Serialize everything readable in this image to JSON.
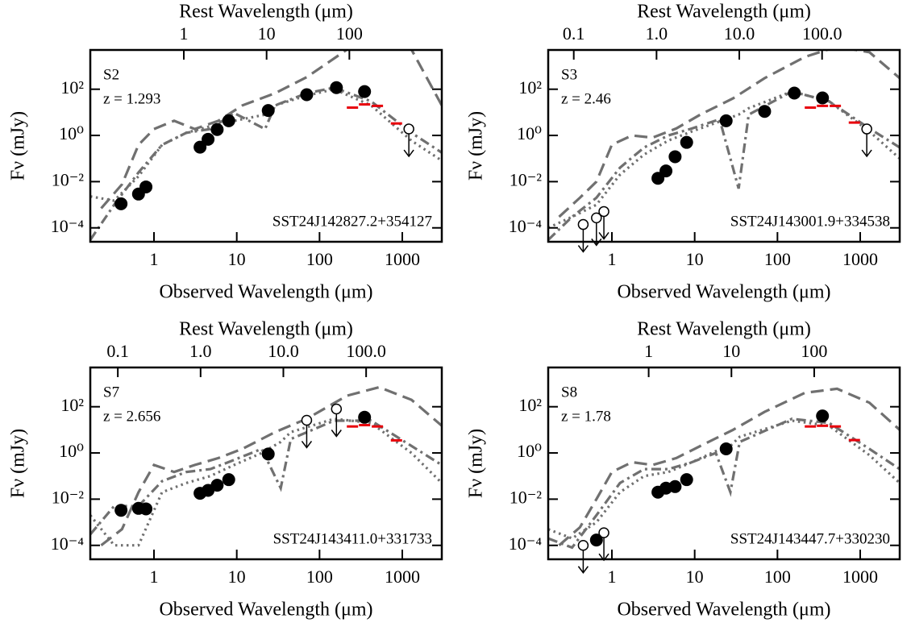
{
  "chart_data": [
    {
      "type": "scatter",
      "label": "S2",
      "redshift": {
        "value": 1.293,
        "label": "z = 1.293"
      },
      "source": "SST24J142827.2+354127",
      "xlabel": "Observed Wavelength (μm)",
      "ylabel": "Fν (mJy)",
      "x2label": "Rest Wavelength (μm)",
      "xscale": "log",
      "yscale": "log",
      "xlim": [
        0.17,
        3000
      ],
      "ylim": [
        2.5e-05,
        5000
      ],
      "xticks": [
        1,
        10,
        100,
        1000
      ],
      "x2ticks": [
        1,
        10,
        100
      ],
      "yticks": [
        {
          "value": 0.0001,
          "label": "10⁻⁴"
        },
        {
          "value": 0.01,
          "label": "10⁻²"
        },
        {
          "value": 1,
          "label": "10⁰"
        },
        {
          "value": 100,
          "label": "10²"
        }
      ],
      "points": {
        "color": "#000000",
        "x": [
          0.4,
          0.65,
          0.8,
          3.6,
          4.5,
          5.8,
          8.0,
          24,
          70,
          160,
          350
        ],
        "values": [
          0.0011,
          0.0029,
          0.0059,
          0.31,
          0.68,
          1.8,
          4.3,
          12,
          58,
          117,
          79
        ]
      },
      "upper_limits": {
        "color": "#000000",
        "x": [
          1200
        ],
        "values": [
          1.9
        ]
      },
      "submm": {
        "color": "#e8000b",
        "x": [
          250,
          350,
          500,
          850
        ],
        "values": [
          16,
          22,
          19,
          3.3
        ]
      },
      "models": [
        {
          "style": "dashed",
          "color": "#707070",
          "x": [
            0.23,
            0.41,
            0.65,
            1,
            1.75,
            3.1,
            6,
            11.7,
            29,
            70,
            215,
            525,
            1290,
            3000
          ],
          "values": [
            0.0007,
            0.0076,
            0.39,
            1.9,
            4.3,
            1.9,
            4.3,
            20,
            67,
            330,
            5200,
            60000,
            5200,
            20
          ]
        },
        {
          "style": "dashdot",
          "color": "#707070",
          "x": [
            0.17,
            0.33,
            0.65,
            1.25,
            2.45,
            4.8,
            9.3,
            22,
            29,
            70,
            150,
            420,
            1290,
            3000
          ],
          "values": [
            3e-05,
            0.001,
            0.025,
            0.39,
            1.3,
            1.9,
            9.3,
            1.9,
            20,
            67,
            117,
            30,
            1.3,
            0.18
          ]
        },
        {
          "style": "dotted",
          "color": "#707070",
          "x": [
            0.17,
            0.33,
            0.65,
            1.25,
            2.45,
            4.8,
            9.3,
            22,
            29,
            70,
            150,
            420,
            1290,
            3000
          ],
          "values": [
            0.0023,
            0.0015,
            0.017,
            0.39,
            1.3,
            2.5,
            4.3,
            8,
            20,
            53,
            100,
            20,
            0.59,
            0.081
          ]
        }
      ]
    },
    {
      "type": "scatter",
      "label": "S3",
      "redshift": {
        "value": 2.46,
        "label": "z = 2.46"
      },
      "source": "SST24J143001.9+334538",
      "xlabel": "Observed Wavelength (μm)",
      "ylabel": "Fν (mJy)",
      "x2label": "Rest Wavelength (μm)",
      "xscale": "log",
      "yscale": "log",
      "xlim": [
        0.17,
        3000
      ],
      "ylim": [
        2.5e-05,
        5000
      ],
      "xticks": [
        1,
        10,
        100,
        1000
      ],
      "x2ticks": [
        0.1,
        {
          "value": 1,
          "label": "1.0"
        },
        {
          "value": 10,
          "label": "10.0"
        },
        {
          "value": 100,
          "label": "100.0"
        }
      ],
      "yticks": [
        {
          "value": 0.0001,
          "label": "10⁻⁴"
        },
        {
          "value": 0.01,
          "label": "10⁻²"
        },
        {
          "value": 1,
          "label": "10⁰"
        },
        {
          "value": 100,
          "label": "10²"
        }
      ],
      "points": {
        "color": "#000000",
        "x": [
          3.6,
          4.5,
          5.8,
          8.0,
          24,
          70,
          160,
          350
        ],
        "values": [
          0.014,
          0.029,
          0.12,
          0.5,
          4.3,
          11,
          68,
          42
        ]
      },
      "upper_limits": {
        "color": "#000000",
        "x": [
          0.45,
          0.65,
          0.8,
          1200
        ],
        "values": [
          0.00014,
          0.00027,
          0.00051,
          1.9
        ]
      },
      "submm": {
        "color": "#e8000b",
        "x": [
          250,
          350,
          500,
          850
        ],
        "values": [
          16,
          19,
          19,
          3.6
        ]
      },
      "models": [
        {
          "style": "dashed",
          "color": "#707070",
          "x": [
            0.23,
            0.41,
            0.65,
            1,
            1.75,
            3.1,
            6,
            11.7,
            29,
            70,
            215,
            525,
            1290,
            3000
          ],
          "values": [
            0.0003,
            0.002,
            0.01,
            0.4,
            1,
            0.8,
            2,
            8,
            40,
            300,
            2500,
            7000,
            4000,
            300
          ]
        },
        {
          "style": "dashdot",
          "color": "#707070",
          "x": [
            0.17,
            0.33,
            0.65,
            1.25,
            2.45,
            4.8,
            9.3,
            20,
            34,
            45,
            150,
            420,
            1290,
            3000
          ],
          "values": [
            3e-05,
            0.0003,
            0.002,
            0.04,
            0.3,
            1,
            2,
            5,
            0.005,
            8,
            80,
            30,
            2,
            0.3
          ]
        },
        {
          "style": "dotted",
          "color": "#707070",
          "x": [
            0.17,
            0.33,
            0.65,
            1.25,
            2.45,
            4.8,
            9.3,
            20,
            34,
            45,
            150,
            420,
            1290,
            3000
          ],
          "values": [
            0.0001,
            0.0003,
            0.001,
            0.02,
            0.15,
            0.6,
            1.5,
            4,
            8,
            15,
            80,
            30,
            1.5,
            0.1
          ]
        }
      ]
    },
    {
      "type": "scatter",
      "label": "S7",
      "redshift": {
        "value": 2.656,
        "label": "z = 2.656"
      },
      "source": "SST24J143411.0+331733",
      "xlabel": "Observed Wavelength (μm)",
      "ylabel": "Fν (mJy)",
      "x2label": "Rest Wavelength (μm)",
      "xscale": "log",
      "yscale": "log",
      "xlim": [
        0.17,
        3000
      ],
      "ylim": [
        2.5e-05,
        5000
      ],
      "xticks": [
        1,
        10,
        100,
        1000
      ],
      "x2ticks": [
        0.1,
        {
          "value": 1,
          "label": "1.0"
        },
        {
          "value": 10,
          "label": "10.0"
        },
        {
          "value": 100,
          "label": "100.0"
        }
      ],
      "yticks": [
        {
          "value": 0.0001,
          "label": "10⁻⁴"
        },
        {
          "value": 0.01,
          "label": "10⁻²"
        },
        {
          "value": 1,
          "label": "10⁰"
        },
        {
          "value": 100,
          "label": "10²"
        }
      ],
      "points": {
        "color": "#000000",
        "x": [
          0.4,
          0.65,
          0.8,
          3.6,
          4.5,
          5.8,
          8.0,
          24,
          350
        ],
        "values": [
          0.0033,
          0.004,
          0.0038,
          0.018,
          0.024,
          0.04,
          0.07,
          0.9,
          35
        ]
      },
      "upper_limits": {
        "color": "#000000",
        "x": [
          70,
          160
        ],
        "values": [
          26,
          80
        ]
      },
      "submm": {
        "color": "#e8000b",
        "x": [
          250,
          350,
          500,
          850
        ],
        "values": [
          14,
          16,
          14,
          3.5
        ]
      },
      "models": [
        {
          "style": "dashed",
          "color": "#707070",
          "x": [
            0.23,
            0.41,
            0.65,
            1,
            1.75,
            3.1,
            6,
            11.7,
            29,
            70,
            215,
            525,
            1290,
            3000
          ],
          "values": [
            0.0001,
            0.0005,
            0.02,
            0.3,
            0.15,
            0.3,
            0.6,
            1.5,
            8,
            30,
            300,
            700,
            200,
            15
          ]
        },
        {
          "style": "dashdot",
          "color": "#707070",
          "x": [
            0.17,
            0.33,
            0.65,
            1.25,
            2.45,
            4.8,
            9.3,
            20,
            34,
            45,
            150,
            420,
            1290,
            3000
          ],
          "values": [
            0.0003,
            0.005,
            0.005,
            0.06,
            0.15,
            0.2,
            0.5,
            1.5,
            0.03,
            4,
            25,
            25,
            2,
            0.3
          ]
        },
        {
          "style": "dotted",
          "color": "#707070",
          "x": [
            0.17,
            0.33,
            0.65,
            1.25,
            2.45,
            4.8,
            9.3,
            20,
            34,
            45,
            150,
            420,
            1290,
            3000
          ],
          "values": [
            0.002,
            0.0001,
            0.0001,
            0.02,
            0.05,
            0.1,
            0.3,
            1,
            3,
            8,
            30,
            20,
            1,
            0.05
          ]
        }
      ]
    },
    {
      "type": "scatter",
      "label": "S8",
      "redshift": {
        "value": 1.78,
        "label": "z = 1.78"
      },
      "source": "SST24J143447.7+330230",
      "xlabel": "Observed Wavelength (μm)",
      "ylabel": "Fν (mJy)",
      "x2label": "Rest Wavelength (μm)",
      "xscale": "log",
      "yscale": "log",
      "xlim": [
        0.17,
        3000
      ],
      "ylim": [
        2.5e-05,
        5000
      ],
      "xticks": [
        1,
        10,
        100,
        1000
      ],
      "x2ticks": [
        1,
        10,
        100
      ],
      "yticks": [
        {
          "value": 0.0001,
          "label": "10⁻⁴"
        },
        {
          "value": 0.01,
          "label": "10⁻²"
        },
        {
          "value": 1,
          "label": "10⁰"
        },
        {
          "value": 100,
          "label": "10²"
        }
      ],
      "points": {
        "color": "#000000",
        "x": [
          0.65,
          3.6,
          4.5,
          5.8,
          8.0,
          24,
          350
        ],
        "values": [
          0.00017,
          0.02,
          0.03,
          0.035,
          0.07,
          1.5,
          40
        ]
      },
      "upper_limits": {
        "color": "#000000",
        "x": [
          0.45,
          0.8
        ],
        "values": [
          0.0001,
          0.00035
        ]
      },
      "submm": {
        "color": "#e8000b",
        "x": [
          250,
          350,
          500,
          850
        ],
        "values": [
          14,
          15,
          14,
          3.6
        ]
      },
      "models": [
        {
          "style": "dashed",
          "color": "#707070",
          "x": [
            0.23,
            0.41,
            0.65,
            1,
            1.75,
            3.1,
            6,
            11.7,
            29,
            70,
            215,
            525,
            1290,
            3000
          ],
          "values": [
            0.0001,
            0.0006,
            0.01,
            0.15,
            0.4,
            0.3,
            0.6,
            2,
            10,
            60,
            400,
            600,
            150,
            10
          ]
        },
        {
          "style": "dashdot",
          "color": "#707070",
          "x": [
            0.17,
            0.33,
            0.65,
            1.25,
            2.45,
            4.8,
            9.3,
            18,
            27,
            35,
            150,
            420,
            1290,
            3000
          ],
          "values": [
            0.0002,
            8e-05,
            0.002,
            0.05,
            0.2,
            0.2,
            0.4,
            1,
            0.02,
            3,
            30,
            20,
            1.5,
            0.2
          ]
        },
        {
          "style": "dotted",
          "color": "#707070",
          "x": [
            0.17,
            0.33,
            0.65,
            1.25,
            2.45,
            4.8,
            9.3,
            18,
            27,
            35,
            150,
            420,
            1290,
            3000
          ],
          "values": [
            0.0005,
            0.0002,
            0.001,
            0.02,
            0.1,
            0.15,
            0.4,
            1.2,
            2,
            5,
            25,
            15,
            0.8,
            0.05
          ]
        }
      ]
    }
  ]
}
